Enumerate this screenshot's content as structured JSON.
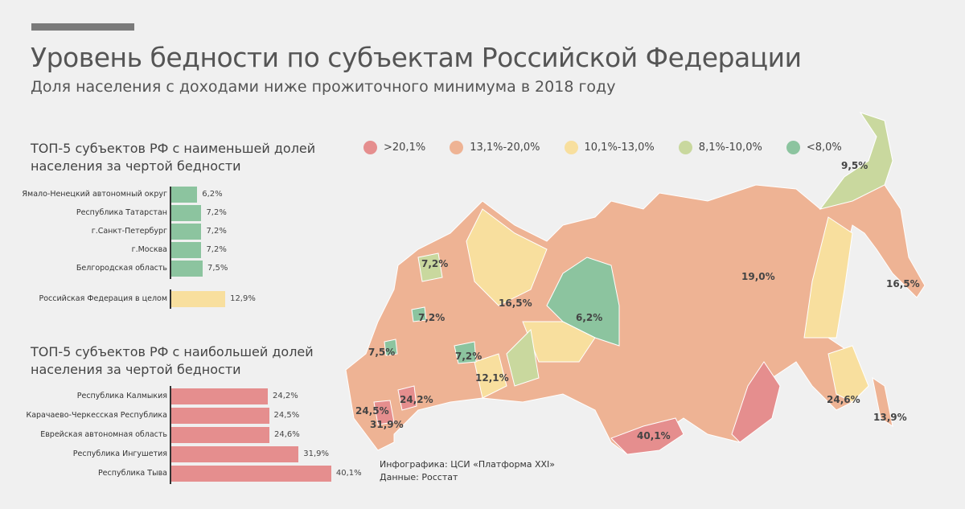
{
  "header": {
    "title": "Уровень бедности по субъектам Российской Федерации",
    "subtitle": "Доля населения с доходами ниже прожиточного минимума в 2018 году"
  },
  "legend": [
    {
      "label": ">20,1%",
      "color": "#e58e8e"
    },
    {
      "label": "13,1%-20,0%",
      "color": "#eeb394"
    },
    {
      "label": "10,1%-13,0%",
      "color": "#f8df9e"
    },
    {
      "label": "8,1%-10,0%",
      "color": "#c9d89e"
    },
    {
      "label": "<8,0%",
      "color": "#8cc49f"
    }
  ],
  "chart_data": [
    {
      "type": "bar",
      "orientation": "horizontal",
      "title": "ТОП-5 субъектов РФ с наименьшей долей населения за чертой бедности",
      "categories": [
        "Ямало-Ненецкий автономный округ",
        "Республика Татарстан",
        "г.Санкт-Петербург",
        "г.Москва",
        "Белгородская область"
      ],
      "values": [
        6.2,
        7.2,
        7.2,
        7.2,
        7.5
      ],
      "labels": [
        "6,2%",
        "7,2%",
        "7,2%",
        "7,2%",
        "7,5%"
      ],
      "color": "#8cc49f",
      "reference": {
        "category": "Российская Федерация в целом",
        "value": 12.9,
        "label": "12,9%",
        "color": "#f8df9e"
      }
    },
    {
      "type": "bar",
      "orientation": "horizontal",
      "title": "ТОП-5 субъектов РФ с наибольшей долей населения за чертой бедности",
      "categories": [
        "Республика Калмыкия",
        "Карачаево-Черкесская Республика",
        "Еврейская автономная область",
        "Республика Ингушетия",
        "Республика Тыва"
      ],
      "values": [
        24.2,
        24.5,
        24.6,
        31.9,
        40.1
      ],
      "labels": [
        "24,2%",
        "24,5%",
        "24,6%",
        "31,9%",
        "40,1%"
      ],
      "color": "#e58e8e"
    }
  ],
  "map_labels": [
    "9,5%",
    "19,0%",
    "16,5%",
    "7,2%",
    "16,5%",
    "6,2%",
    "7,2%",
    "7,5%",
    "7,2%",
    "12,1%",
    "24,2%",
    "24,5%",
    "31,9%",
    "40,1%",
    "24,6%",
    "13,9%"
  ],
  "credits": {
    "line1": "Инфографика: ЦСИ «Платформа XXI»",
    "line2": "Данные: Росстат"
  }
}
